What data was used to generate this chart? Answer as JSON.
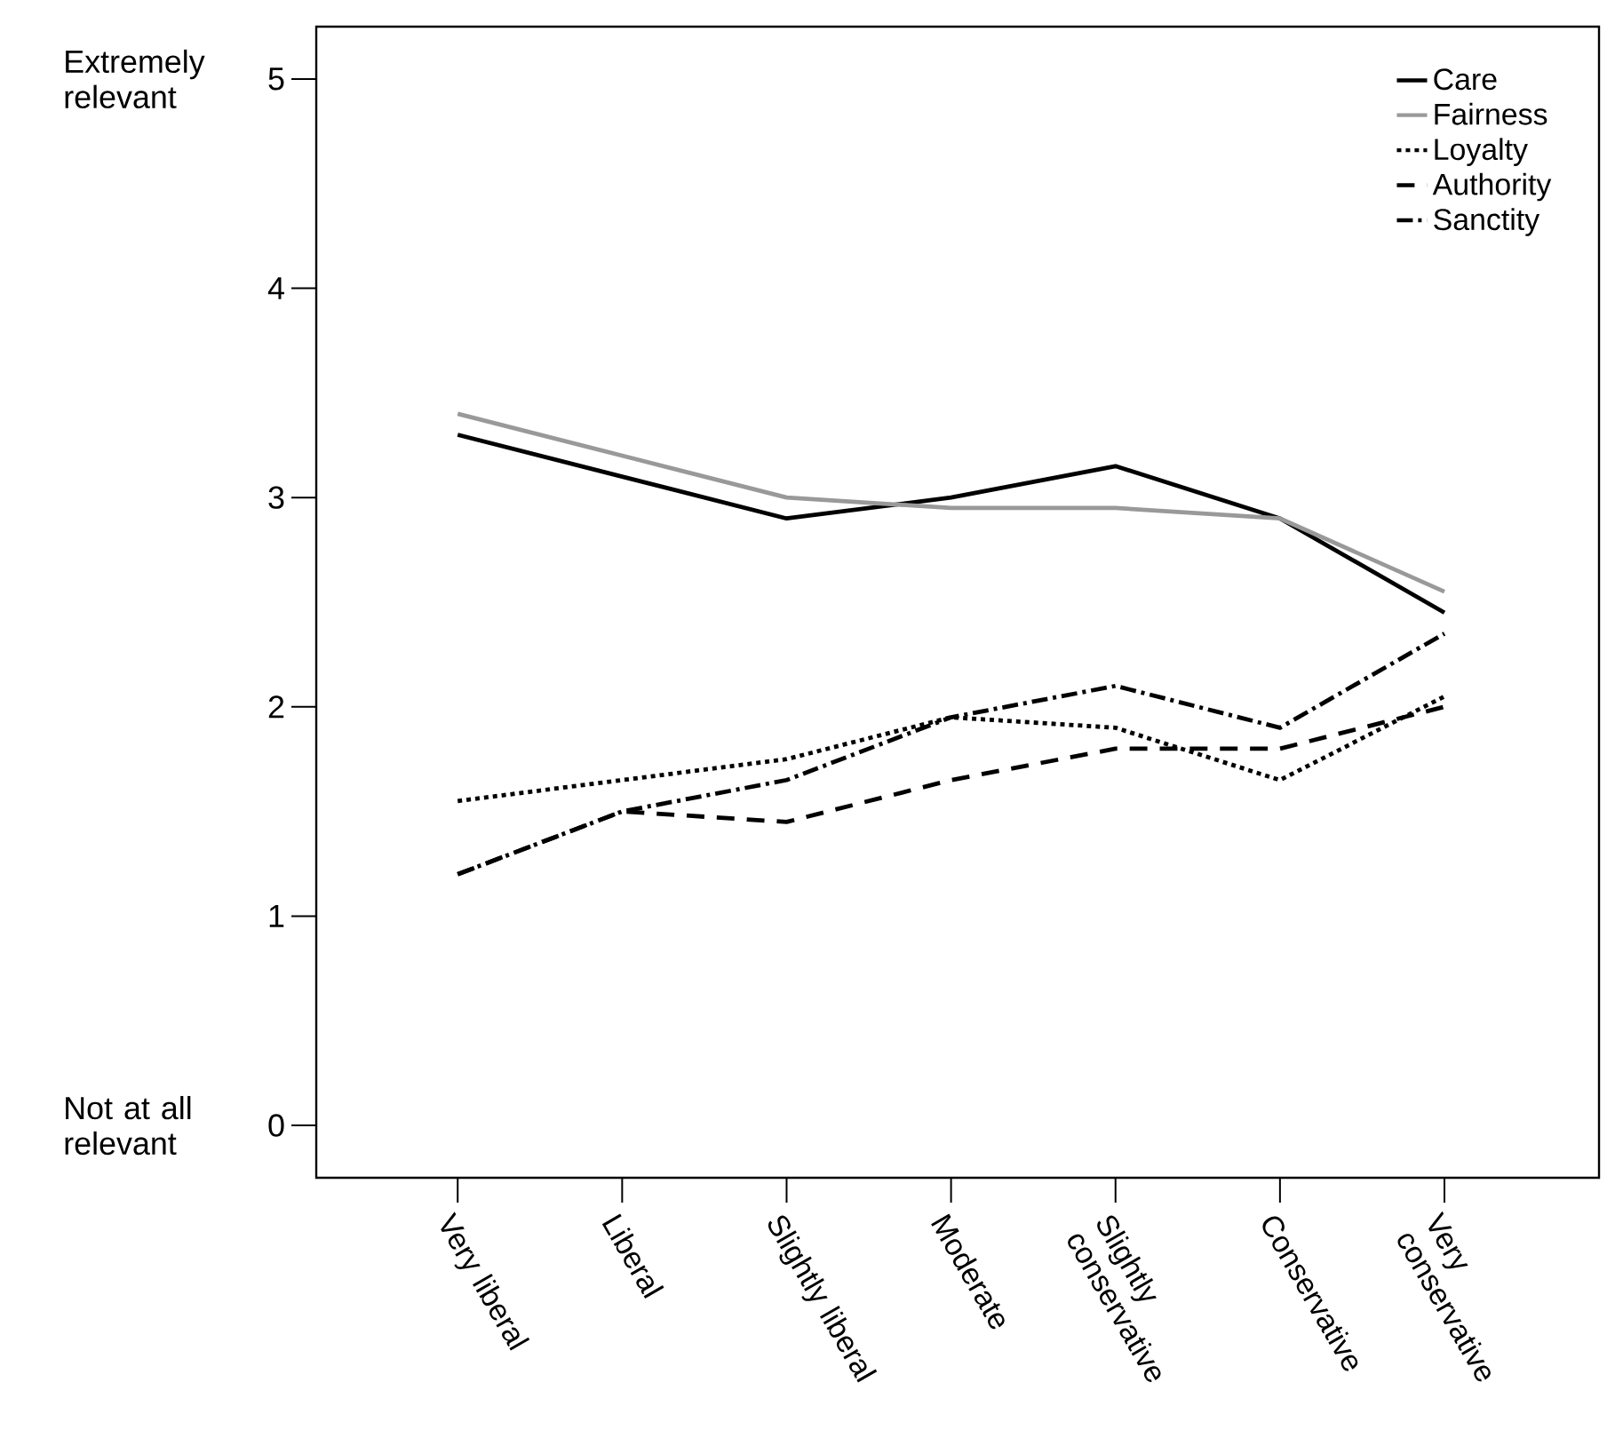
{
  "chart_data": {
    "type": "line",
    "categories": [
      "Very liberal",
      "Liberal",
      "Slightly liberal",
      "Moderate",
      "Slightly conservative",
      "Conservative",
      "Very conservative"
    ],
    "series": [
      {
        "name": "Care",
        "color": "#000000",
        "line_style": "solid",
        "values": [
          3.3,
          3.1,
          2.9,
          3.0,
          3.15,
          2.9,
          2.45
        ]
      },
      {
        "name": "Fairness",
        "color": "#999999",
        "line_style": "solid",
        "values": [
          3.4,
          3.2,
          3.0,
          2.95,
          2.95,
          2.9,
          2.55
        ]
      },
      {
        "name": "Loyalty",
        "color": "#000000",
        "line_style": "dotted",
        "values": [
          1.55,
          1.65,
          1.75,
          1.95,
          1.9,
          1.65,
          2.05
        ]
      },
      {
        "name": "Authority",
        "color": "#000000",
        "line_style": "dashed",
        "values": [
          1.2,
          1.5,
          1.45,
          1.65,
          1.8,
          1.8,
          2.0
        ]
      },
      {
        "name": "Sanctity",
        "color": "#000000",
        "line_style": "dashdot",
        "values": [
          1.2,
          1.5,
          1.65,
          1.95,
          2.1,
          1.9,
          2.35
        ]
      }
    ],
    "ylim": [
      -0.25,
      5.25
    ],
    "yticks": [
      0,
      1,
      2,
      3,
      4,
      5
    ],
    "annotations": [
      "Extremely relevant",
      "Not at all relevant"
    ],
    "legend": "top right",
    "grid": false,
    "marker": "none"
  }
}
